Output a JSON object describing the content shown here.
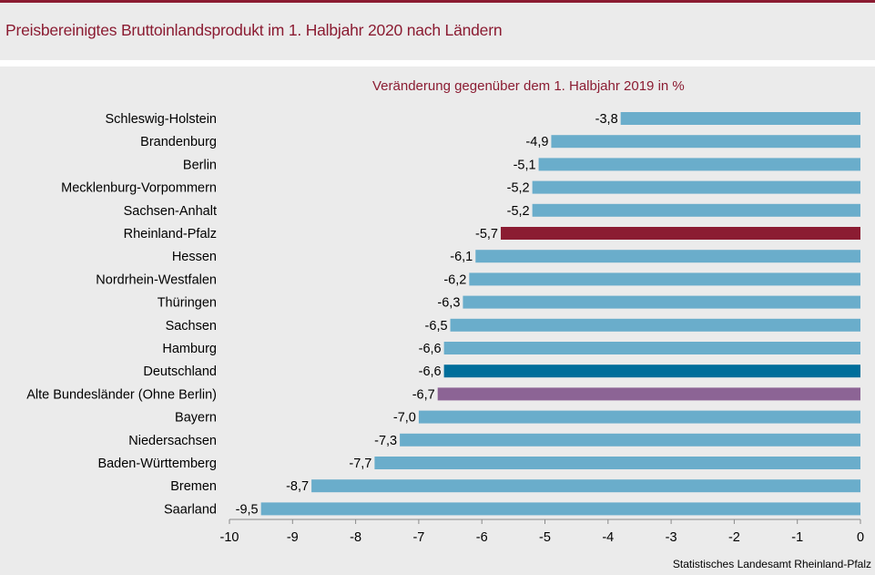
{
  "title": "Preisbereinigtes Bruttoinlandsprodukt im 1. Halbjahr 2020 nach Ländern",
  "source": "Statistisches Landesamt Rheinland-Pfalz",
  "colors": {
    "accent": "#8b1c32",
    "default_bar": "#6aadcb",
    "rheinland_pfalz": "#8b1c32",
    "deutschland": "#006e9b",
    "alte_bundeslaender": "#8c6495"
  },
  "chart_data": {
    "type": "bar",
    "orientation": "horizontal",
    "title": "Veränderung gegenüber dem 1. Halbjahr 2019 in %",
    "xlim": [
      -10,
      0
    ],
    "xticks": [
      -10,
      -9,
      -8,
      -7,
      -6,
      -5,
      -4,
      -3,
      -2,
      -1,
      0
    ],
    "grid": false,
    "categories": [
      "Schleswig-Holstein",
      "Brandenburg",
      "Berlin",
      "Mecklenburg-Vorpommern",
      "Sachsen-Anhalt",
      "Rheinland-Pfalz",
      "Hessen",
      "Nordrhein-Westfalen",
      "Thüringen",
      "Sachsen",
      "Hamburg",
      "Deutschland",
      "Alte Bundesländer (Ohne Berlin)",
      "Bayern",
      "Niedersachsen",
      "Baden-Württemberg",
      "Bremen",
      "Saarland"
    ],
    "values": [
      -3.8,
      -4.9,
      -5.1,
      -5.2,
      -5.2,
      -5.7,
      -6.1,
      -6.2,
      -6.3,
      -6.5,
      -6.6,
      -6.6,
      -6.7,
      -7.0,
      -7.3,
      -7.7,
      -8.7,
      -9.5
    ],
    "value_labels": [
      "-3,8",
      "-4,9",
      "-5,1",
      "-5,2",
      "-5,2",
      "-5,7",
      "-6,1",
      "-6,2",
      "-6,3",
      "-6,5",
      "-6,6",
      "-6,6",
      "-6,7",
      "-7,0",
      "-7,3",
      "-7,7",
      "-8,7",
      "-9,5"
    ],
    "bar_colors": [
      "#6aadcb",
      "#6aadcb",
      "#6aadcb",
      "#6aadcb",
      "#6aadcb",
      "#8b1c32",
      "#6aadcb",
      "#6aadcb",
      "#6aadcb",
      "#6aadcb",
      "#6aadcb",
      "#006e9b",
      "#8c6495",
      "#6aadcb",
      "#6aadcb",
      "#6aadcb",
      "#6aadcb",
      "#6aadcb"
    ]
  }
}
